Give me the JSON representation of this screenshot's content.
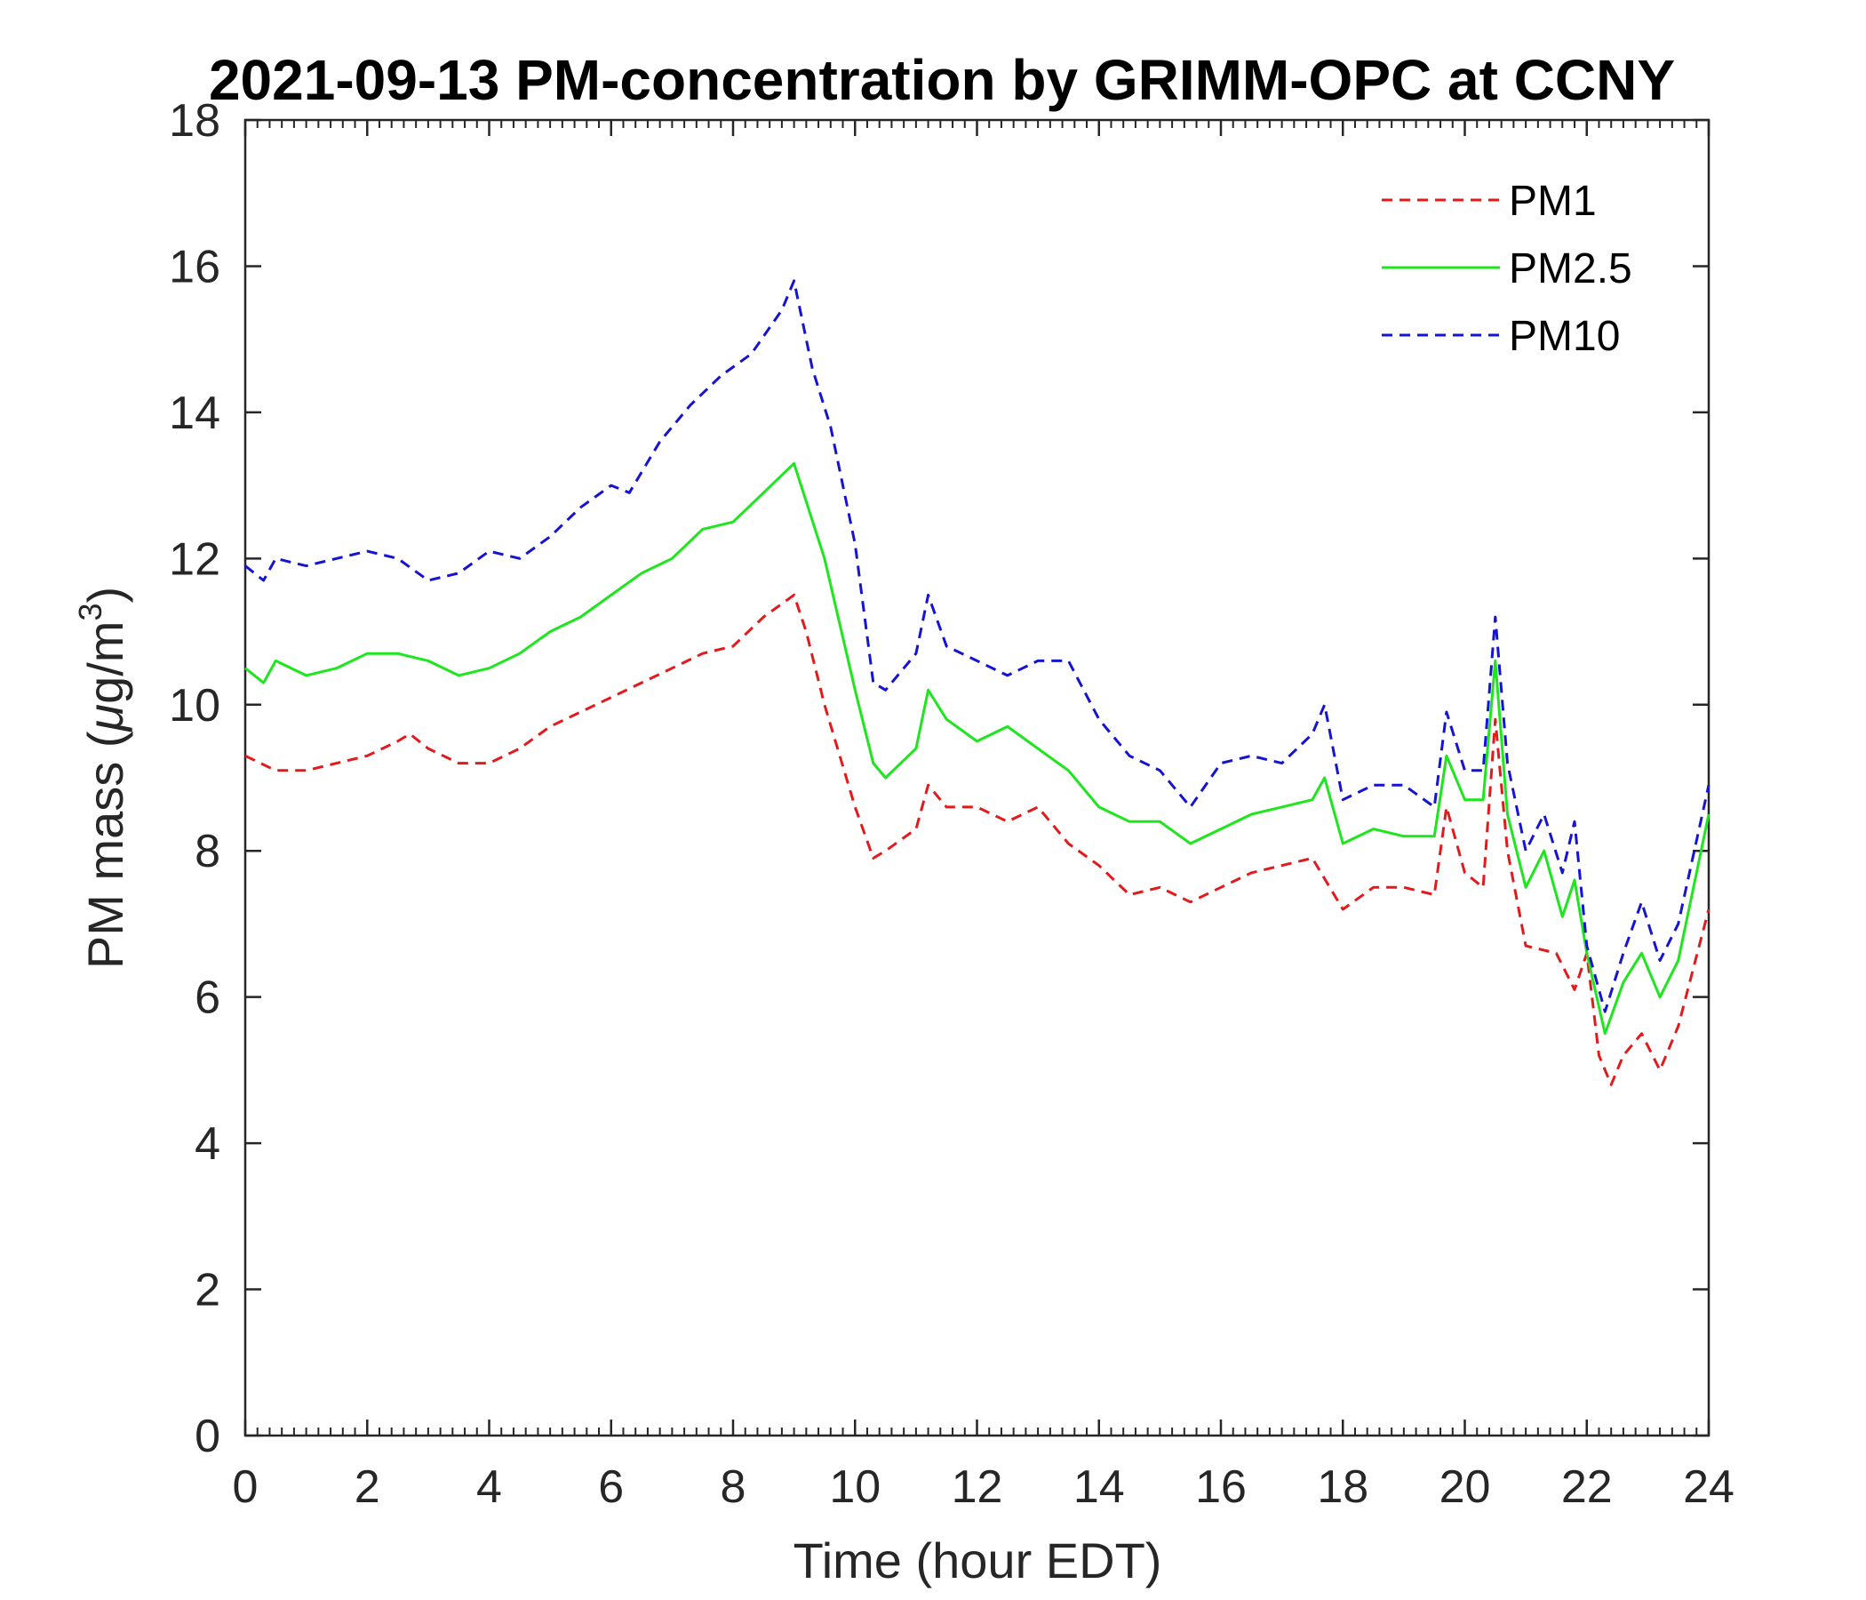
{
  "chart_data": {
    "type": "line",
    "title": "2021-09-13 PM-concentration by GRIMM-OPC at CCNY",
    "xlabel": "Time (hour EDT)",
    "ylabel": "PM mass (μg/m³)",
    "ylabel_parts": {
      "before": "PM mass (",
      "mu": "μ",
      "middle": "g/m",
      "sup": "3",
      "after": ")"
    },
    "xlim": [
      0,
      24
    ],
    "ylim": [
      0,
      18
    ],
    "xticks": [
      0,
      2,
      4,
      6,
      8,
      10,
      12,
      14,
      16,
      18,
      20,
      22,
      24
    ],
    "yticks": [
      0,
      2,
      4,
      6,
      8,
      10,
      12,
      14,
      16,
      18
    ],
    "grid": false,
    "legend_position": "top-right",
    "series": [
      {
        "name": "PM1",
        "color": "#e31a1c",
        "style": "dashed",
        "x": [
          0,
          0.5,
          1,
          1.5,
          2,
          2.5,
          2.7,
          3,
          3.5,
          4,
          4.5,
          5,
          5.5,
          6,
          6.5,
          7,
          7.5,
          8,
          8.5,
          9,
          9.2,
          9.5,
          10,
          10.3,
          10.5,
          11,
          11.2,
          11.5,
          12,
          12.5,
          13,
          13.5,
          14,
          14.5,
          15,
          15.5,
          16,
          16.5,
          17,
          17.5,
          18,
          18.5,
          19,
          19.5,
          19.7,
          20,
          20.3,
          20.5,
          20.7,
          21,
          21.5,
          21.8,
          22,
          22.2,
          22.4,
          22.6,
          22.9,
          23.2,
          23.5,
          24
        ],
        "values": [
          9.3,
          9.1,
          9.1,
          9.2,
          9.3,
          9.5,
          9.6,
          9.4,
          9.2,
          9.2,
          9.4,
          9.7,
          9.9,
          10.1,
          10.3,
          10.5,
          10.7,
          10.8,
          11.2,
          11.5,
          11.0,
          10.0,
          8.6,
          7.9,
          8.0,
          8.3,
          8.9,
          8.6,
          8.6,
          8.4,
          8.6,
          8.1,
          7.8,
          7.4,
          7.5,
          7.3,
          7.5,
          7.7,
          7.8,
          7.9,
          7.2,
          7.5,
          7.5,
          7.4,
          8.6,
          7.7,
          7.5,
          9.8,
          8.0,
          6.7,
          6.6,
          6.1,
          6.6,
          5.2,
          4.8,
          5.2,
          5.5,
          5.0,
          5.6,
          7.2
        ]
      },
      {
        "name": "PM2.5",
        "color": "#1ee61e",
        "style": "solid",
        "x": [
          0,
          0.3,
          0.5,
          1,
          1.5,
          2,
          2.5,
          3,
          3.5,
          4,
          4.5,
          5,
          5.5,
          6,
          6.5,
          7,
          7.5,
          8,
          8.5,
          9,
          9.5,
          10,
          10.3,
          10.5,
          11,
          11.2,
          11.5,
          12,
          12.5,
          13,
          13.5,
          14,
          14.5,
          15,
          15.5,
          16,
          16.5,
          17,
          17.5,
          17.7,
          18,
          18.5,
          19,
          19.5,
          19.7,
          20,
          20.3,
          20.5,
          20.7,
          21,
          21.3,
          21.6,
          21.8,
          22,
          22.3,
          22.6,
          22.9,
          23.2,
          23.5,
          24
        ],
        "values": [
          10.5,
          10.3,
          10.6,
          10.4,
          10.5,
          10.7,
          10.7,
          10.6,
          10.4,
          10.5,
          10.7,
          11.0,
          11.2,
          11.5,
          11.8,
          12.0,
          12.4,
          12.5,
          12.9,
          13.3,
          12.0,
          10.2,
          9.2,
          9.0,
          9.4,
          10.2,
          9.8,
          9.5,
          9.7,
          9.4,
          9.1,
          8.6,
          8.4,
          8.4,
          8.1,
          8.3,
          8.5,
          8.6,
          8.7,
          9.0,
          8.1,
          8.3,
          8.2,
          8.2,
          9.3,
          8.7,
          8.7,
          10.6,
          8.5,
          7.5,
          8.0,
          7.1,
          7.6,
          6.6,
          5.5,
          6.2,
          6.6,
          6.0,
          6.5,
          8.5
        ]
      },
      {
        "name": "PM10",
        "color": "#1414d2",
        "style": "dashed",
        "x": [
          0,
          0.3,
          0.5,
          1,
          1.5,
          2,
          2.5,
          3,
          3.5,
          4,
          4.5,
          5,
          5.5,
          6,
          6.3,
          6.8,
          7.3,
          7.8,
          8.3,
          8.8,
          9,
          9.3,
          9.6,
          10,
          10.3,
          10.5,
          11,
          11.2,
          11.5,
          12,
          12.5,
          13,
          13.5,
          14,
          14.5,
          15,
          15.5,
          16,
          16.5,
          17,
          17.5,
          17.7,
          18,
          18.5,
          19,
          19.5,
          19.7,
          20,
          20.3,
          20.5,
          20.7,
          21,
          21.3,
          21.6,
          21.8,
          22,
          22.3,
          22.6,
          22.9,
          23.2,
          23.5,
          24
        ],
        "values": [
          11.9,
          11.7,
          12.0,
          11.9,
          12.0,
          12.1,
          12.0,
          11.7,
          11.8,
          12.1,
          12.0,
          12.3,
          12.7,
          13.0,
          12.9,
          13.6,
          14.1,
          14.5,
          14.8,
          15.4,
          15.8,
          14.6,
          13.8,
          12.2,
          10.3,
          10.2,
          10.7,
          11.5,
          10.8,
          10.6,
          10.4,
          10.6,
          10.6,
          9.8,
          9.3,
          9.1,
          8.6,
          9.2,
          9.3,
          9.2,
          9.6,
          10.0,
          8.7,
          8.9,
          8.9,
          8.6,
          9.9,
          9.1,
          9.1,
          11.2,
          9.2,
          8.0,
          8.5,
          7.7,
          8.4,
          6.7,
          5.8,
          6.6,
          7.3,
          6.5,
          7.0,
          8.9
        ]
      }
    ]
  }
}
